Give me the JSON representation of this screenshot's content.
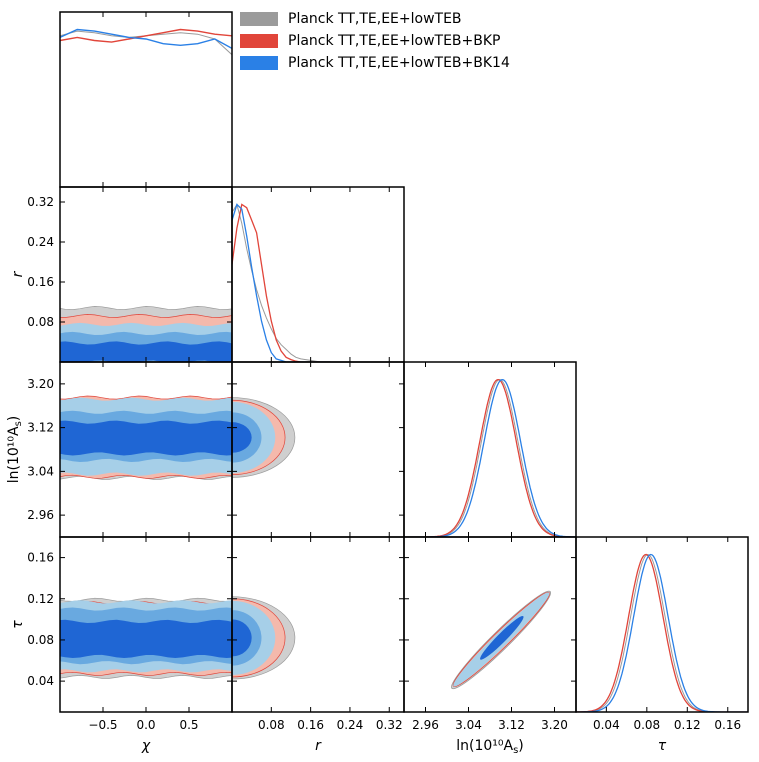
{
  "chart_data": {
    "type": "triangle-corner-plot",
    "legend": [
      {
        "name": "Planck TT,TE,EE+lowTEB",
        "color": "#9b9b9b"
      },
      {
        "name": "Planck TT,TE,EE+lowTEB+BKP",
        "color": "#e1453a"
      },
      {
        "name": "Planck TT,TE,EE+lowTEB+BK14",
        "color": "#2a80e6"
      }
    ],
    "contour_colors": {
      "grey_outer": "#cfcfcf",
      "grey_inner": "#a8a8a8",
      "red_outer": "#f4b9ac",
      "red_inner": "#e8806f",
      "blue_outer": "#a6cfe8",
      "blue_mid": "#69a9e0",
      "blue_inner": "#1f66d4",
      "line_grey": "#9b9b9b",
      "line_red": "#e1453a",
      "line_blue": "#2a80e6"
    },
    "parameters": [
      {
        "key": "chi",
        "label": "χ",
        "range": [
          -1.0,
          1.0
        ],
        "ticks": [
          -0.5,
          0.0,
          0.5
        ],
        "tick_labels": [
          "−0.5",
          "0.0",
          "0.5"
        ]
      },
      {
        "key": "r",
        "label": "r",
        "range": [
          0.0,
          0.35
        ],
        "ticks": [
          0.08,
          0.16,
          0.24,
          0.32
        ],
        "tick_labels": [
          "0.08",
          "0.16",
          "0.24",
          "0.32"
        ]
      },
      {
        "key": "lnAs",
        "label": "ln(10¹⁰ A_s)",
        "range": [
          2.92,
          3.24
        ],
        "ticks": [
          2.96,
          3.04,
          3.12,
          3.2
        ],
        "tick_labels": [
          "2.96",
          "3.04",
          "3.12",
          "3.20"
        ]
      },
      {
        "key": "tau",
        "label": "τ",
        "range": [
          0.01,
          0.18
        ],
        "ticks": [
          0.04,
          0.08,
          0.12,
          0.16
        ],
        "tick_labels": [
          "0.04",
          "0.08",
          "0.12",
          "0.16"
        ]
      }
    ],
    "axis_labels": {
      "x": [
        "χ",
        "r",
        "ln(10¹⁰A",
        "τ"
      ],
      "y": [
        "r",
        "ln(10¹⁰A",
        "τ"
      ],
      "subscript": "s"
    },
    "marginals": {
      "chi": {
        "x": [
          -1.0,
          -0.8,
          -0.6,
          -0.4,
          -0.2,
          0.0,
          0.2,
          0.4,
          0.6,
          0.8,
          1.0
        ],
        "series": [
          {
            "name": "Planck TT,TE,EE+lowTEB",
            "values": [
              0.96,
              0.99,
              0.98,
              0.96,
              0.95,
              0.96,
              0.97,
              0.98,
              0.97,
              0.94,
              0.84
            ]
          },
          {
            "name": "Planck TT,TE,EE+lowTEB+BKP",
            "values": [
              0.93,
              0.95,
              0.93,
              0.92,
              0.94,
              0.96,
              0.98,
              1.0,
              0.99,
              0.97,
              0.96
            ]
          },
          {
            "name": "Planck TT,TE,EE+lowTEB+BK14",
            "values": [
              0.95,
              1.0,
              0.99,
              0.97,
              0.95,
              0.94,
              0.91,
              0.9,
              0.91,
              0.94,
              0.88
            ]
          }
        ]
      },
      "r": {
        "x": [
          0.0,
          0.01,
          0.02,
          0.03,
          0.04,
          0.05,
          0.06,
          0.07,
          0.08,
          0.09,
          0.1,
          0.11,
          0.12,
          0.13,
          0.14,
          0.16,
          0.18,
          0.2
        ],
        "series": [
          {
            "name": "Planck TT,TE,EE+lowTEB",
            "values": [
              0.95,
              1.0,
              0.88,
              0.72,
              0.58,
              0.46,
              0.36,
              0.28,
              0.21,
              0.15,
              0.11,
              0.08,
              0.05,
              0.03,
              0.02,
              0.01,
              0.0,
              0.0
            ]
          },
          {
            "name": "Planck TT,TE,EE+lowTEB+BKP",
            "values": [
              0.62,
              0.85,
              1.0,
              0.98,
              0.9,
              0.82,
              0.62,
              0.42,
              0.26,
              0.14,
              0.07,
              0.03,
              0.015,
              0.005,
              0.0,
              0.0,
              0.0,
              0.0
            ]
          },
          {
            "name": "Planck TT,TE,EE+lowTEB+BK14",
            "values": [
              0.9,
              1.0,
              0.97,
              0.8,
              0.6,
              0.42,
              0.26,
              0.14,
              0.06,
              0.02,
              0.01,
              0.0,
              0.0,
              0.0,
              0.0,
              0.0,
              0.0,
              0.0
            ]
          }
        ]
      },
      "lnAs": {
        "series": [
          {
            "name": "Planck TT,TE,EE+lowTEB",
            "mean": 3.098,
            "sigma": 0.034
          },
          {
            "name": "Planck TT,TE,EE+lowTEB+BKP",
            "mean": 3.095,
            "sigma": 0.034
          },
          {
            "name": "Planck TT,TE,EE+lowTEB+BK14",
            "mean": 3.103,
            "sigma": 0.034
          }
        ]
      },
      "tau": {
        "series": [
          {
            "name": "Planck TT,TE,EE+lowTEB",
            "mean": 0.081,
            "sigma": 0.017
          },
          {
            "name": "Planck TT,TE,EE+lowTEB+BKP",
            "mean": 0.079,
            "sigma": 0.017
          },
          {
            "name": "Planck TT,TE,EE+lowTEB+BK14",
            "mean": 0.084,
            "sigma": 0.017
          }
        ]
      }
    },
    "bands_vs_chi": {
      "r": {
        "grey_outer": [
          0.0,
          0.108
        ],
        "red_outer": [
          0.0,
          0.092
        ],
        "blue_outer": [
          0.0,
          0.075
        ],
        "blue_mid": [
          0.0,
          0.057
        ],
        "blue_inner": [
          0.0,
          0.038
        ]
      },
      "lnAs": {
        "grey_outer": [
          3.028,
          3.17
        ],
        "red_outer": [
          3.03,
          3.175
        ],
        "blue_outer": [
          3.035,
          3.172
        ],
        "blue_mid": [
          3.06,
          3.148
        ],
        "blue_inner": [
          3.072,
          3.13
        ]
      },
      "tau": {
        "grey_outer": [
          0.044,
          0.119
        ],
        "red_outer": [
          0.047,
          0.116
        ],
        "blue_outer": [
          0.05,
          0.117
        ],
        "blue_mid": [
          0.058,
          0.11
        ],
        "blue_inner": [
          0.064,
          0.098
        ]
      }
    },
    "contours_vs_r": {
      "lnAs": {
        "center": 3.102,
        "grey": [
          0.128,
          0.073
        ],
        "red": [
          0.108,
          0.068
        ],
        "blue_outer": [
          0.088,
          0.065
        ],
        "blue_mid": [
          0.06,
          0.046
        ],
        "blue_inner": [
          0.04,
          0.028
        ]
      },
      "tau": {
        "center": 0.082,
        "grey": [
          0.128,
          0.04
        ],
        "red": [
          0.108,
          0.038
        ],
        "blue_outer": [
          0.088,
          0.036
        ],
        "blue_mid": [
          0.06,
          0.027
        ],
        "blue_inner": [
          0.04,
          0.018
        ]
      }
    },
    "contour_tau_lnAs": {
      "outer_ends": [
        [
          3.012,
          0.035
        ],
        [
          3.19,
          0.126
        ]
      ],
      "inner_ends": [
        [
          3.062,
          0.061
        ],
        [
          3.142,
          0.103
        ]
      ]
    }
  }
}
